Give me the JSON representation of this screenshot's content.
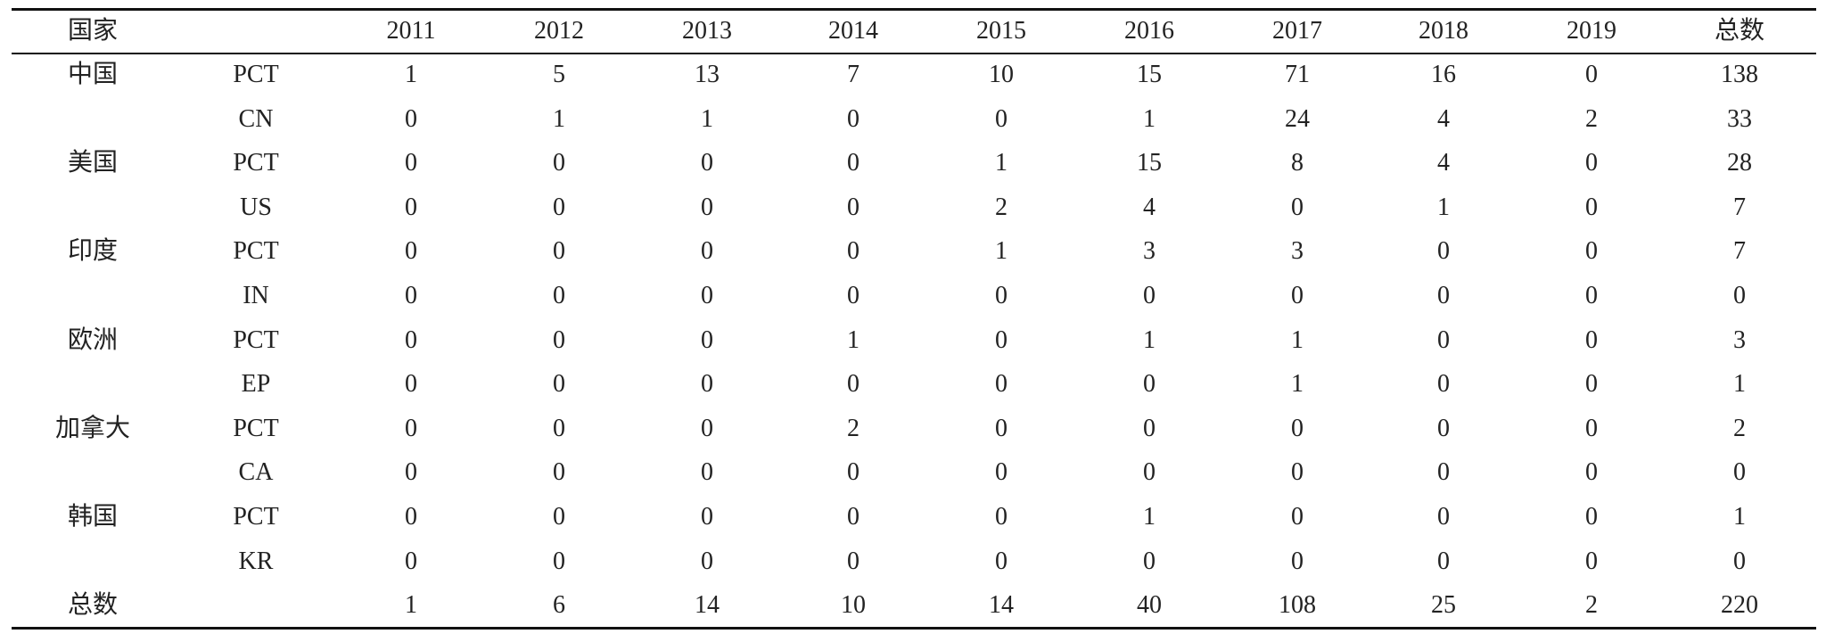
{
  "header": {
    "country": "国家",
    "years": [
      2011,
      2012,
      2013,
      2014,
      2015,
      2016,
      2017,
      2018,
      2019
    ],
    "total": "总数"
  },
  "groups": [
    {
      "country": "中国",
      "rows": [
        {
          "code": "PCT",
          "values": [
            1,
            5,
            13,
            7,
            10,
            15,
            71,
            16,
            0
          ],
          "total": 138
        },
        {
          "code": "CN",
          "values": [
            0,
            1,
            1,
            0,
            0,
            1,
            24,
            4,
            2
          ],
          "total": 33
        }
      ]
    },
    {
      "country": "美国",
      "rows": [
        {
          "code": "PCT",
          "values": [
            0,
            0,
            0,
            0,
            1,
            15,
            8,
            4,
            0
          ],
          "total": 28
        },
        {
          "code": "US",
          "values": [
            0,
            0,
            0,
            0,
            2,
            4,
            0,
            1,
            0
          ],
          "total": 7
        }
      ]
    },
    {
      "country": "印度",
      "rows": [
        {
          "code": "PCT",
          "values": [
            0,
            0,
            0,
            0,
            1,
            3,
            3,
            0,
            0
          ],
          "total": 7
        },
        {
          "code": "IN",
          "values": [
            0,
            0,
            0,
            0,
            0,
            0,
            0,
            0,
            0
          ],
          "total": 0
        }
      ]
    },
    {
      "country": "欧洲",
      "rows": [
        {
          "code": "PCT",
          "values": [
            0,
            0,
            0,
            1,
            0,
            1,
            1,
            0,
            0
          ],
          "total": 3
        },
        {
          "code": "EP",
          "values": [
            0,
            0,
            0,
            0,
            0,
            0,
            1,
            0,
            0
          ],
          "total": 1
        }
      ]
    },
    {
      "country": "加拿大",
      "rows": [
        {
          "code": "PCT",
          "values": [
            0,
            0,
            0,
            2,
            0,
            0,
            0,
            0,
            0
          ],
          "total": 2
        },
        {
          "code": "CA",
          "values": [
            0,
            0,
            0,
            0,
            0,
            0,
            0,
            0,
            0
          ],
          "total": 0
        }
      ]
    },
    {
      "country": "韩国",
      "rows": [
        {
          "code": "PCT",
          "values": [
            0,
            0,
            0,
            0,
            0,
            1,
            0,
            0,
            0
          ],
          "total": 1
        },
        {
          "code": "KR",
          "values": [
            0,
            0,
            0,
            0,
            0,
            0,
            0,
            0,
            0
          ],
          "total": 0
        }
      ]
    }
  ],
  "footer": {
    "label": "总数",
    "values": [
      1,
      6,
      14,
      10,
      14,
      40,
      108,
      25,
      2
    ],
    "total": 220
  }
}
